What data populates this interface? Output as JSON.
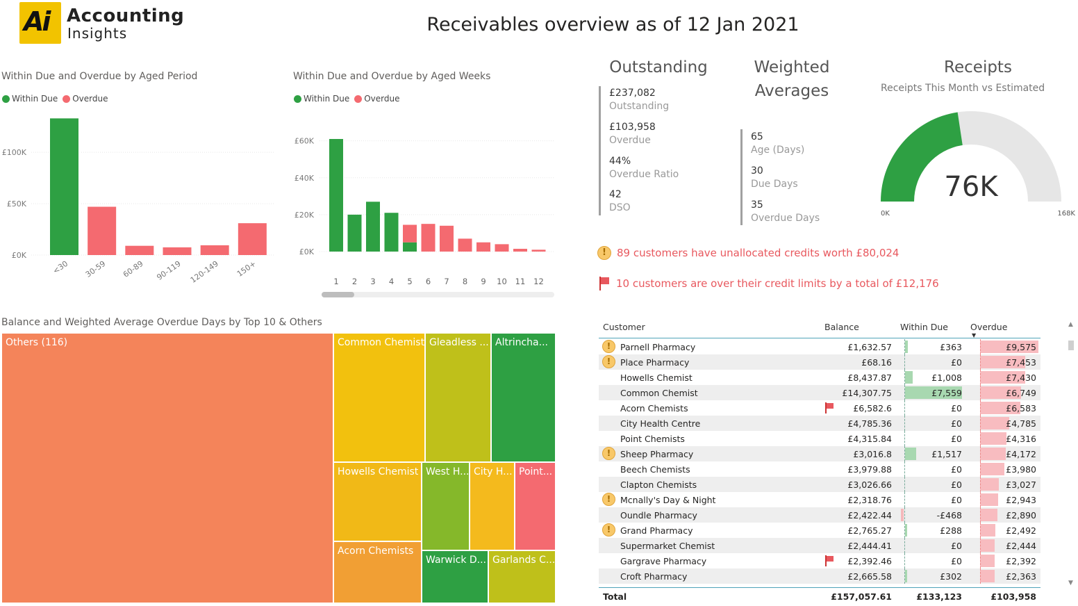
{
  "header": {
    "logo_mark": "Ai",
    "logo_line1": "Accounting",
    "logo_line2": "Insights",
    "title": "Receivables overview as of 12 Jan 2021"
  },
  "colors": {
    "within_due": "#2ea043",
    "overdue": "#f46a70",
    "gauge_fill": "#2ea043",
    "gauge_track": "#e6e6e6",
    "alert_text": "#e8585e"
  },
  "aged_period": {
    "title": "Within Due and Overdue by Aged Period",
    "legend": [
      "Within Due",
      "Overdue"
    ],
    "y_ticks": [
      "£100K",
      "£50K",
      "£0K"
    ]
  },
  "aged_weeks": {
    "title": "Within Due and Overdue by Aged Weeks",
    "legend": [
      "Within Due",
      "Overdue"
    ],
    "y_ticks": [
      "£60K",
      "£40K",
      "£20K",
      "£0K"
    ]
  },
  "chart_data": [
    {
      "type": "bar",
      "title": "Within Due and Overdue by Aged Period",
      "categories": [
        "<30",
        "30-59",
        "60-89",
        "90-119",
        "120-149",
        "150+"
      ],
      "series": [
        {
          "name": "Within Due",
          "values": [
            133000,
            0,
            0,
            0,
            0,
            0
          ]
        },
        {
          "name": "Overdue",
          "values": [
            0,
            47000,
            9000,
            7500,
            9500,
            31000
          ]
        }
      ],
      "ylim": [
        0,
        140000
      ]
    },
    {
      "type": "bar",
      "stacked": true,
      "title": "Within Due and Overdue by Aged Weeks",
      "categories": [
        "1",
        "2",
        "3",
        "4",
        "5",
        "6",
        "7",
        "8",
        "9",
        "10",
        "11",
        "12"
      ],
      "series": [
        {
          "name": "Within Due",
          "values": [
            61000,
            20000,
            27000,
            21000,
            5000,
            0,
            0,
            0,
            0,
            0,
            0,
            0
          ]
        },
        {
          "name": "Overdue",
          "values": [
            0,
            0,
            0,
            0,
            9500,
            15000,
            14000,
            7000,
            5000,
            4000,
            1500,
            1000
          ]
        }
      ],
      "ylim": [
        0,
        62000
      ]
    },
    {
      "type": "gauge",
      "title": "Receipts",
      "subtitle": "Receipts This Month vs Estimated",
      "value": 76,
      "min": 0,
      "max": 168,
      "value_label": "76K",
      "min_label": "0K",
      "max_label": "168K"
    }
  ],
  "outstanding": {
    "heading": "Outstanding",
    "items": [
      {
        "value": "£237,082",
        "label": "Outstanding"
      },
      {
        "value": "£103,958",
        "label": "Overdue"
      },
      {
        "value": "44%",
        "label": "Overdue Ratio"
      },
      {
        "value": "42",
        "label": "DSO"
      }
    ]
  },
  "weighted": {
    "heading1": "Weighted",
    "heading2": "Averages",
    "items": [
      {
        "value": "65",
        "label": "Age (Days)"
      },
      {
        "value": "30",
        "label": "Due Days"
      },
      {
        "value": "35",
        "label": "Overdue Days"
      }
    ]
  },
  "receipts": {
    "heading": "Receipts",
    "subtitle": "Receipts This Month vs Estimated",
    "value_label": "76K",
    "min_label": "0K",
    "max_label": "168K"
  },
  "alerts": {
    "warn_icon": "!",
    "credits": "89 customers have unallocated credits worth £80,024",
    "limits": "10 customers are over their credit limits by a total of £12,176"
  },
  "treemap": {
    "title": "Balance and Weighted Average Overdue Days by Top 10 & Others",
    "cells": [
      {
        "label": "Others (116)",
        "color": "#f4845a"
      },
      {
        "label": "Common Chemist",
        "color": "#f2c10e"
      },
      {
        "label": "Gleadless ...",
        "color": "#bfc01a"
      },
      {
        "label": "Altrincha...",
        "color": "#2ea043"
      },
      {
        "label": "Howells Chemist",
        "color": "#f1b917"
      },
      {
        "label": "West H...",
        "color": "#85b82a"
      },
      {
        "label": "City H...",
        "color": "#f4ba1d"
      },
      {
        "label": "Point...",
        "color": "#f46a70"
      },
      {
        "label": "Acorn Chemists",
        "color": "#f19f34"
      },
      {
        "label": "Warwick D...",
        "color": "#2ea043"
      },
      {
        "label": "Garlands C...",
        "color": "#bfc01a"
      }
    ]
  },
  "table": {
    "headers": [
      "Customer",
      "Balance",
      "Within Due",
      "Overdue"
    ],
    "rows": [
      {
        "warn": true,
        "flag": false,
        "customer": "Parnell Pharmacy",
        "balance": "£1,632.57",
        "within": "£363",
        "overdue": "£9,575",
        "within_n": 363,
        "overdue_n": 9575
      },
      {
        "warn": true,
        "flag": false,
        "customer": "Place Pharmacy",
        "balance": "£68.16",
        "within": "£0",
        "overdue": "£7,453",
        "within_n": 0,
        "overdue_n": 7453
      },
      {
        "warn": false,
        "flag": false,
        "customer": "Howells Chemist",
        "balance": "£8,437.87",
        "within": "£1,008",
        "overdue": "£7,430",
        "within_n": 1008,
        "overdue_n": 7430
      },
      {
        "warn": false,
        "flag": false,
        "customer": "Common Chemist",
        "balance": "£14,307.75",
        "within": "£7,559",
        "overdue": "£6,749",
        "within_n": 7559,
        "overdue_n": 6749
      },
      {
        "warn": false,
        "flag": true,
        "customer": "Acorn Chemists",
        "balance": "£6,582.6",
        "within": "£0",
        "overdue": "£6,583",
        "within_n": 0,
        "overdue_n": 6583
      },
      {
        "warn": false,
        "flag": false,
        "customer": "City Health Centre",
        "balance": "£4,785.36",
        "within": "£0",
        "overdue": "£4,785",
        "within_n": 0,
        "overdue_n": 4785
      },
      {
        "warn": false,
        "flag": false,
        "customer": "Point Chemists",
        "balance": "£4,315.84",
        "within": "£0",
        "overdue": "£4,316",
        "within_n": 0,
        "overdue_n": 4316
      },
      {
        "warn": true,
        "flag": false,
        "customer": "Sheep Pharmacy",
        "balance": "£3,016.8",
        "within": "£1,517",
        "overdue": "£4,172",
        "within_n": 1517,
        "overdue_n": 4172
      },
      {
        "warn": false,
        "flag": false,
        "customer": "Beech Chemists",
        "balance": "£3,979.88",
        "within": "£0",
        "overdue": "£3,980",
        "within_n": 0,
        "overdue_n": 3980
      },
      {
        "warn": false,
        "flag": false,
        "customer": "Clapton Chemists",
        "balance": "£3,026.66",
        "within": "£0",
        "overdue": "£3,027",
        "within_n": 0,
        "overdue_n": 3027
      },
      {
        "warn": true,
        "flag": false,
        "customer": "Mcnally's Day & Night",
        "balance": "£2,318.76",
        "within": "£0",
        "overdue": "£2,943",
        "within_n": 0,
        "overdue_n": 2943
      },
      {
        "warn": false,
        "flag": false,
        "customer": "Oundle Pharmacy",
        "balance": "£2,422.44",
        "within": "-£468",
        "overdue": "£2,890",
        "within_n": -468,
        "overdue_n": 2890
      },
      {
        "warn": true,
        "flag": false,
        "customer": "Grand Pharmacy",
        "balance": "£2,765.27",
        "within": "£288",
        "overdue": "£2,492",
        "within_n": 288,
        "overdue_n": 2492
      },
      {
        "warn": false,
        "flag": false,
        "customer": "Supermarket Chemist",
        "balance": "£2,444.41",
        "within": "£0",
        "overdue": "£2,444",
        "within_n": 0,
        "overdue_n": 2444
      },
      {
        "warn": false,
        "flag": true,
        "customer": "Gargrave Pharmacy",
        "balance": "£2,392.46",
        "within": "£0",
        "overdue": "£2,392",
        "within_n": 0,
        "overdue_n": 2392
      },
      {
        "warn": false,
        "flag": false,
        "customer": "Croft Pharmacy",
        "balance": "£2,665.58",
        "within": "£302",
        "overdue": "£2,363",
        "within_n": 302,
        "overdue_n": 2363
      }
    ],
    "total": {
      "label": "Total",
      "balance": "£157,057.61",
      "within": "£133,123",
      "overdue": "£103,958"
    }
  }
}
